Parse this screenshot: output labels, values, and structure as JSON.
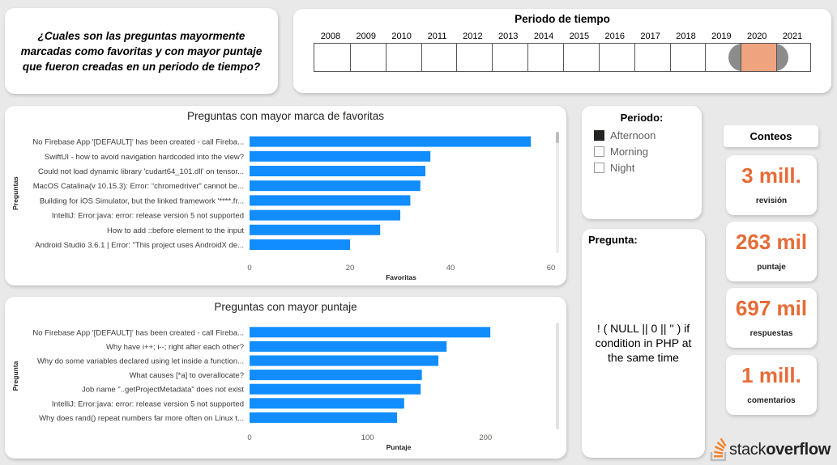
{
  "question": {
    "text": "¿Cuales son las preguntas mayormente marcadas como favoritas y con mayor puntaje  que fueron creadas en un periodo de tiempo?"
  },
  "period_slicer": {
    "title": "Periodo de tiempo",
    "years": [
      "2008",
      "2009",
      "2010",
      "2011",
      "2012",
      "2013",
      "2014",
      "2015",
      "2016",
      "2017",
      "2018",
      "2019",
      "2020",
      "2021"
    ],
    "selected_start": "2020",
    "selected_end": "2020",
    "colors": {
      "handle": "#8c8c8c",
      "fill": "#f0a37f"
    }
  },
  "chart_data": [
    {
      "type": "bar",
      "orientation": "horizontal",
      "title": "Preguntas con mayor marca de favoritas",
      "xlabel": "Favoritas",
      "ylabel": "Preguntas",
      "xlim": [
        0,
        60
      ],
      "ticks": [
        0,
        20,
        40,
        60
      ],
      "color": "#118dff",
      "categories": [
        "No Firebase App '[DEFAULT]' has been created - call Fireba...",
        "SwiftUI - how to avoid navigation hardcoded into the view?",
        "Could not load dynamic library 'cudart64_101.dll' on tensor...",
        "MacOS Catalina(v 10.15.3): Error: “chromedriver” cannot be...",
        "Building for iOS Simulator, but the linked framework '****.fr...",
        "IntelliJ: Error:java: error: release version 5 not supported",
        "How to add ::before element to the input",
        "Android Studio 3.6.1 | Error: \"This project uses AndroidX de..."
      ],
      "values": [
        56,
        36,
        35,
        34,
        32,
        30,
        26,
        20
      ]
    },
    {
      "type": "bar",
      "orientation": "horizontal",
      "title": "Preguntas con mayor puntaje",
      "xlabel": "Puntaje",
      "ylabel": "Pregunta",
      "xlim": [
        0,
        230
      ],
      "ticks": [
        0,
        100,
        200
      ],
      "color": "#118dff",
      "categories": [
        "No Firebase App '[DEFAULT]' has been created - call Fireba...",
        "Why have i++; i--; right after each other?",
        "Why do some variables declared using let inside a function...",
        "What causes [*a] to overallocate?",
        "Job name \"..getProjectMetadata\" does not exist",
        "IntelliJ: Error:java: error: release version 5 not supported",
        "Why does rand() repeat numbers far more often on Linux t..."
      ],
      "values": [
        204,
        167,
        160,
        146,
        145,
        131,
        125
      ]
    }
  ],
  "legend": {
    "title": "Periodo:",
    "items": [
      {
        "label": "Afternoon",
        "checked": true
      },
      {
        "label": "Morning",
        "checked": false
      },
      {
        "label": "Night",
        "checked": false
      }
    ]
  },
  "pregunta": {
    "title": "Pregunta:",
    "text": "! ( NULL || 0 || '' ) if condition in PHP at the same time"
  },
  "conteos": {
    "title": "Conteos",
    "kpis": [
      {
        "value": "3 mill.",
        "label": "revisión"
      },
      {
        "value": "263 mil",
        "label": "puntaje"
      },
      {
        "value": "697 mil",
        "label": "respuestas"
      },
      {
        "value": "1 mill.",
        "label": "comentarios"
      }
    ],
    "value_color": "#e66c37"
  },
  "logo": {
    "word1": "stack",
    "word2": "overflow",
    "icon": "stackoverflow-logo-icon"
  }
}
